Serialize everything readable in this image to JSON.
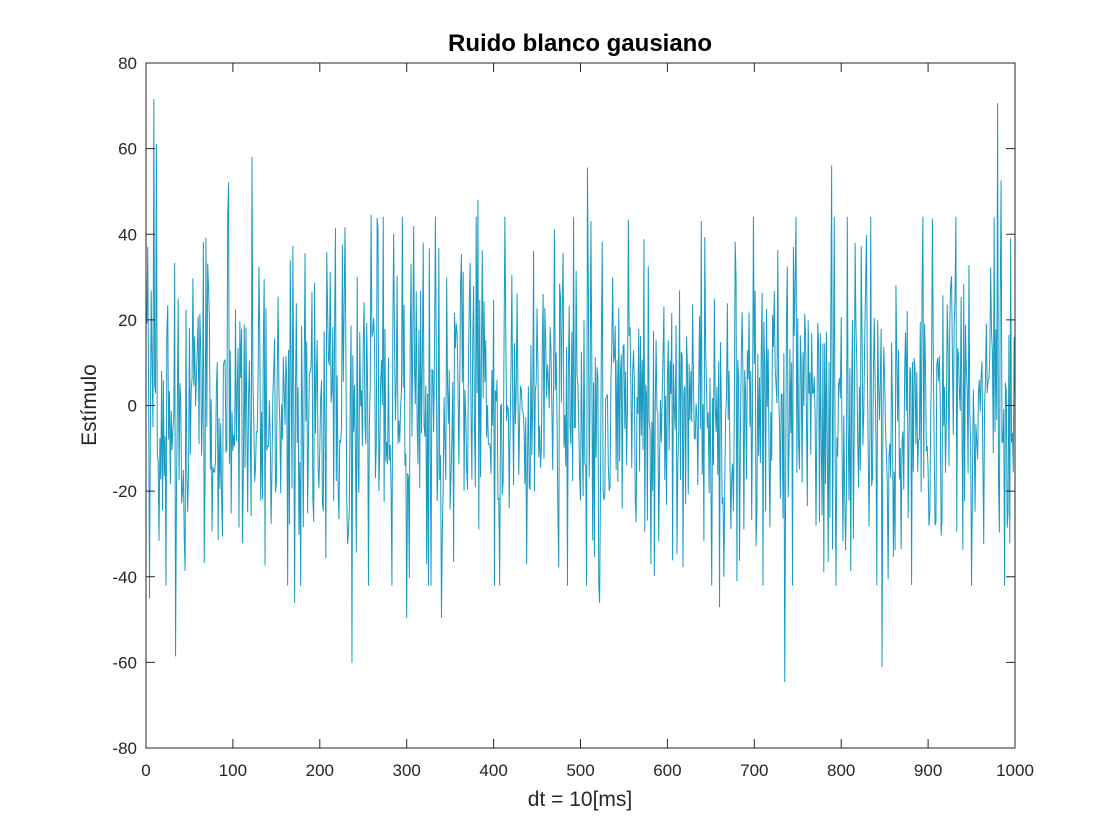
{
  "chart_data": {
    "type": "line",
    "title": "Ruido blanco gausiano",
    "xlabel": "dt = 10[ms]",
    "ylabel": "Estímulo",
    "xlim": [
      0,
      1000
    ],
    "ylim": [
      -80,
      80
    ],
    "x_ticks": [
      0,
      100,
      200,
      300,
      400,
      500,
      600,
      700,
      800,
      900,
      1000
    ],
    "y_ticks": [
      -80,
      -60,
      -40,
      -20,
      0,
      20,
      40,
      60,
      80
    ],
    "x_tick_labels": [
      "0",
      "100",
      "200",
      "300",
      "400",
      "500",
      "600",
      "700",
      "800",
      "900",
      "1000"
    ],
    "y_tick_labels": [
      "-80",
      "-60",
      "-40",
      "-20",
      "0",
      "20",
      "40",
      "60",
      "80"
    ],
    "grid": false,
    "series": [
      {
        "color": "#1a9bc2",
        "n_points": 1000,
        "noise_sigma": 20,
        "noise_mean": 0,
        "notable_points": [
          {
            "x": 2,
            "y": 37
          },
          {
            "x": 4,
            "y": -45
          },
          {
            "x": 9,
            "y": 71.5
          },
          {
            "x": 12,
            "y": 61
          },
          {
            "x": 34,
            "y": -58.5
          },
          {
            "x": 95,
            "y": 52
          },
          {
            "x": 122,
            "y": 58
          },
          {
            "x": 171,
            "y": -46
          },
          {
            "x": 237,
            "y": -60
          },
          {
            "x": 259,
            "y": 44.5
          },
          {
            "x": 300,
            "y": -49.5
          },
          {
            "x": 340,
            "y": -49.5
          },
          {
            "x": 382,
            "y": 48
          },
          {
            "x": 508,
            "y": 55.5
          },
          {
            "x": 522,
            "y": -46
          },
          {
            "x": 660,
            "y": -47
          },
          {
            "x": 735,
            "y": -64.5
          },
          {
            "x": 789,
            "y": 56
          },
          {
            "x": 847,
            "y": -61
          },
          {
            "x": 980,
            "y": 70.5
          },
          {
            "x": 984,
            "y": 52.5
          }
        ]
      }
    ]
  }
}
